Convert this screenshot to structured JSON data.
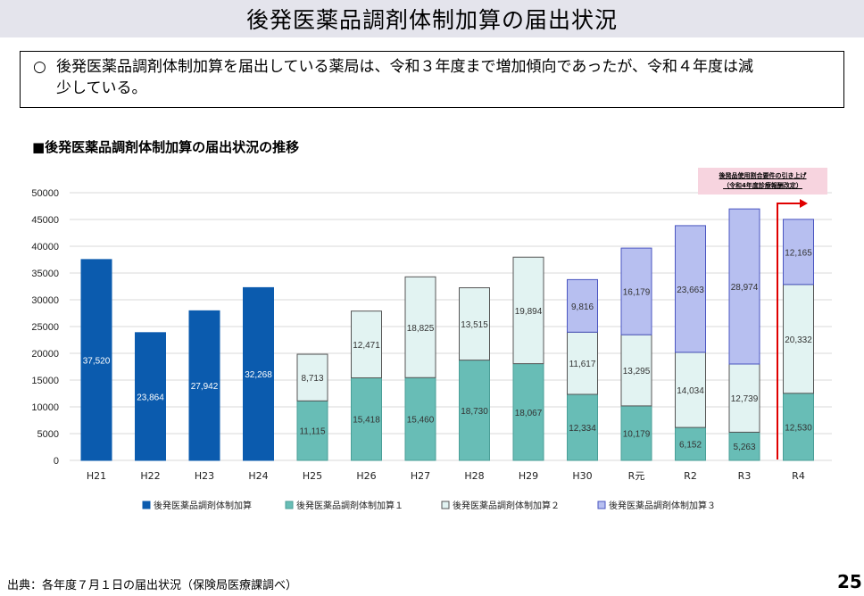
{
  "slide_title": "後発医薬品調剤体制加算の届出状況",
  "summary": {
    "marker": "○",
    "line1": "後発医薬品調剤体制加算を届出している薬局は、令和３年度まで増加傾向であったが、令和４年度は減",
    "line2": "少している。"
  },
  "chart_heading": "■後発医薬品調剤体制加算の届出状況の推移",
  "note": {
    "line1": "後発品使用割合要件の引き上げ",
    "line2": "（令和4年度診療報酬改定）"
  },
  "colors": {
    "series0": "#0b5bae",
    "series1": "#68bdb6",
    "series2": "#e2f3f2",
    "series3": "#b7bff0",
    "arrow": "#e00000",
    "grid": "#d9d9d9"
  },
  "chart_data": {
    "type": "bar",
    "stacked": true,
    "categories": [
      "H21",
      "H22",
      "H23",
      "H24",
      "H25",
      "H26",
      "H27",
      "H28",
      "H29",
      "H30",
      "R元",
      "R2",
      "R3",
      "R4"
    ],
    "y_ticks": [
      0,
      5000,
      10000,
      15000,
      20000,
      25000,
      30000,
      35000,
      40000,
      45000,
      50000
    ],
    "ylim": [
      0,
      50000
    ],
    "series": [
      {
        "name": "後発医薬品調剤体制加算",
        "values": [
          37520,
          23864,
          27942,
          32268,
          null,
          null,
          null,
          null,
          null,
          null,
          null,
          null,
          null,
          null
        ],
        "labels": [
          "37,520",
          "23,864",
          "27,942",
          "32,268",
          "",
          "",
          "",
          "",
          "",
          "",
          "",
          "",
          "",
          ""
        ]
      },
      {
        "name": "後発医薬品調剤体制加算１",
        "values": [
          null,
          null,
          null,
          null,
          11115,
          15418,
          15460,
          18730,
          18067,
          12334,
          10179,
          6152,
          5263,
          12530
        ],
        "labels": [
          "",
          "",
          "",
          "",
          "11,115",
          "15,418",
          "15,460",
          "18,730",
          "18,067",
          "12,334",
          "10,179",
          "6,152",
          "5,263",
          "12,530"
        ]
      },
      {
        "name": "後発医薬品調剤体制加算２",
        "values": [
          null,
          null,
          null,
          null,
          8713,
          12471,
          18825,
          13515,
          19894,
          11617,
          13295,
          14034,
          12739,
          20332
        ],
        "labels": [
          "",
          "",
          "",
          "",
          "8,713",
          "12,471",
          "18,825",
          "13,515",
          "19,894",
          "11,617",
          "13,295",
          "14,034",
          "12,739",
          "20,332"
        ]
      },
      {
        "name": "後発医薬品調剤体制加算３",
        "values": [
          null,
          null,
          null,
          null,
          null,
          null,
          null,
          null,
          null,
          9816,
          16179,
          23663,
          28974,
          12165
        ],
        "labels": [
          "",
          "",
          "",
          "",
          "",
          "",
          "",
          "",
          "",
          "9,816",
          "16,179",
          "23,663",
          "28,974",
          "12,165"
        ]
      }
    ],
    "legend_position": "bottom"
  },
  "footer": {
    "source": "出典：各年度７月１日の届出状況（保険局医療課調べ）",
    "page": "25"
  }
}
